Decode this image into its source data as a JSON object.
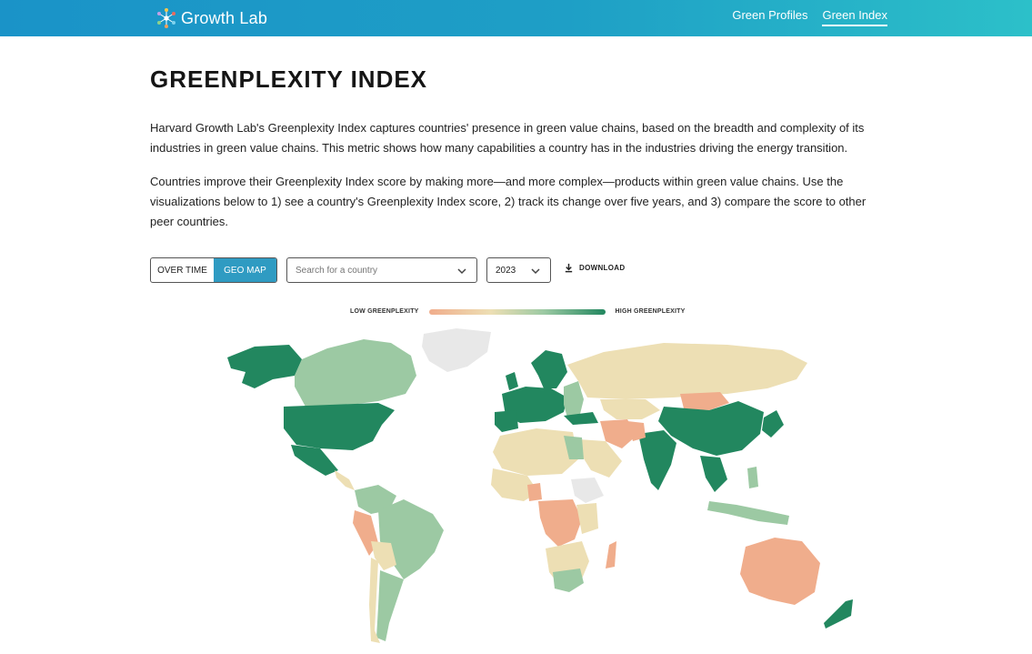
{
  "header": {
    "brand": "Growth Lab",
    "nav": [
      {
        "label": "Green Profiles",
        "active": false
      },
      {
        "label": "Green Index",
        "active": true
      }
    ]
  },
  "page": {
    "title": "GREENPLEXITY INDEX",
    "paragraph1": "Harvard Growth Lab's Greenplexity Index captures countries' presence in green value chains, based on the breadth and complexity of its industries in green value chains. This metric shows how many capabilities a country has in the industries driving the energy transition.",
    "paragraph2": "Countries improve their Greenplexity Index score by making more—and more complex—products within green value chains. Use the visualizations below to 1) see a country's Greenplexity Index score, 2) track its change over five years, and 3) compare the score to other peer countries."
  },
  "controls": {
    "toggle": [
      {
        "label": "OVER TIME",
        "active": false
      },
      {
        "label": "GEO MAP",
        "active": true
      }
    ],
    "search_placeholder": "Search for a country",
    "year": "2023",
    "download_label": "DOWNLOAD"
  },
  "legend": {
    "low_label": "LOW GREENPLEXITY",
    "high_label": "HIGH GREENPLEXITY"
  },
  "colors": {
    "low": "#f0ad8c",
    "mid": "#eddfb4",
    "light_green": "#9cc9a3",
    "high": "#22875f",
    "no_data": "#e8e8e8",
    "accent": "#2f9bc2"
  }
}
